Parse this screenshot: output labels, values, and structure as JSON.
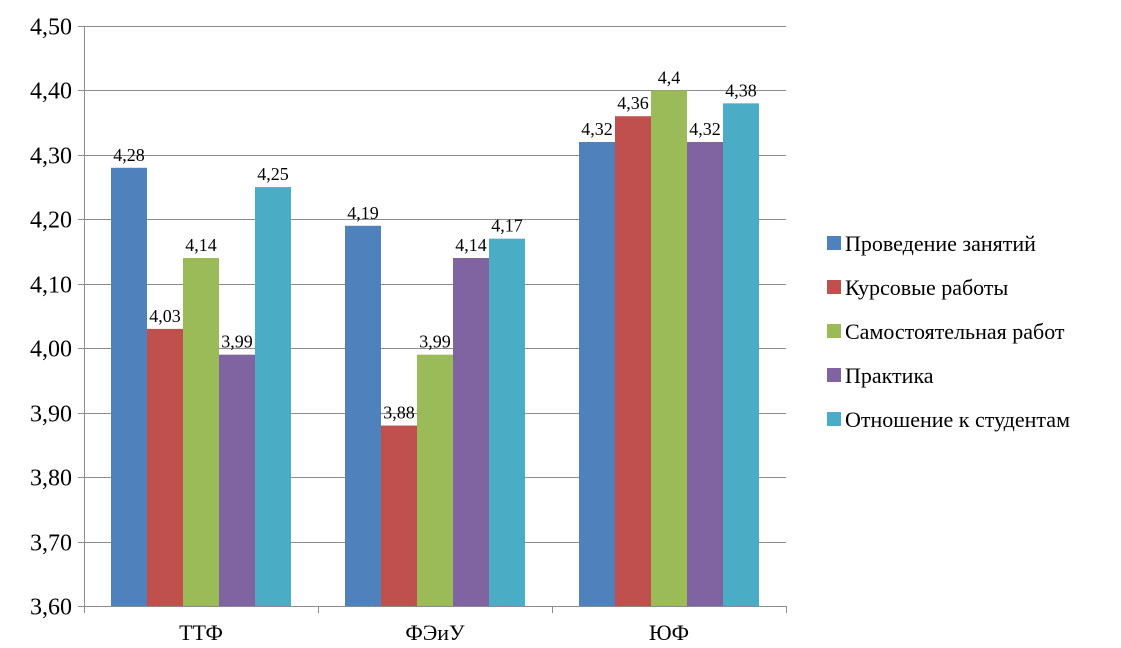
{
  "chart_data": {
    "type": "bar",
    "categories": [
      "ТТФ",
      "ФЭиУ",
      "ЮФ"
    ],
    "series": [
      {
        "name": "Проведение занятий",
        "color": "#4F81BD",
        "values": [
          4.28,
          4.19,
          4.32
        ],
        "labels": [
          "4,28",
          "4,19",
          "4,32"
        ]
      },
      {
        "name": "Курсовые работы",
        "color": "#C0504D",
        "values": [
          4.03,
          3.88,
          4.36
        ],
        "labels": [
          "4,03",
          "3,88",
          "4,36"
        ]
      },
      {
        "name": "Самостоятельная работ",
        "color": "#9BBB59",
        "values": [
          4.14,
          3.99,
          4.4
        ],
        "labels": [
          "4,14",
          "3,99",
          "4,4"
        ]
      },
      {
        "name": "Практика",
        "color": "#8064A2",
        "values": [
          3.99,
          4.14,
          4.32
        ],
        "labels": [
          "3,99",
          "4,14",
          "4,32"
        ]
      },
      {
        "name": "Отношение к студентам",
        "color": "#4BACC6",
        "values": [
          4.25,
          4.17,
          4.38
        ],
        "labels": [
          "4,25",
          "4,17",
          "4,38"
        ]
      }
    ],
    "ylim": [
      3.6,
      4.5
    ],
    "yticks": [
      3.6,
      3.7,
      3.8,
      3.9,
      4.0,
      4.1,
      4.2,
      4.3,
      4.4,
      4.5
    ],
    "ytick_labels": [
      "3,60",
      "3,70",
      "3,80",
      "3,90",
      "4,00",
      "4,10",
      "4,20",
      "4,30",
      "4,40",
      "4,50"
    ],
    "grid": true,
    "legend_position": "right",
    "title": "",
    "xlabel": "",
    "ylabel": ""
  }
}
